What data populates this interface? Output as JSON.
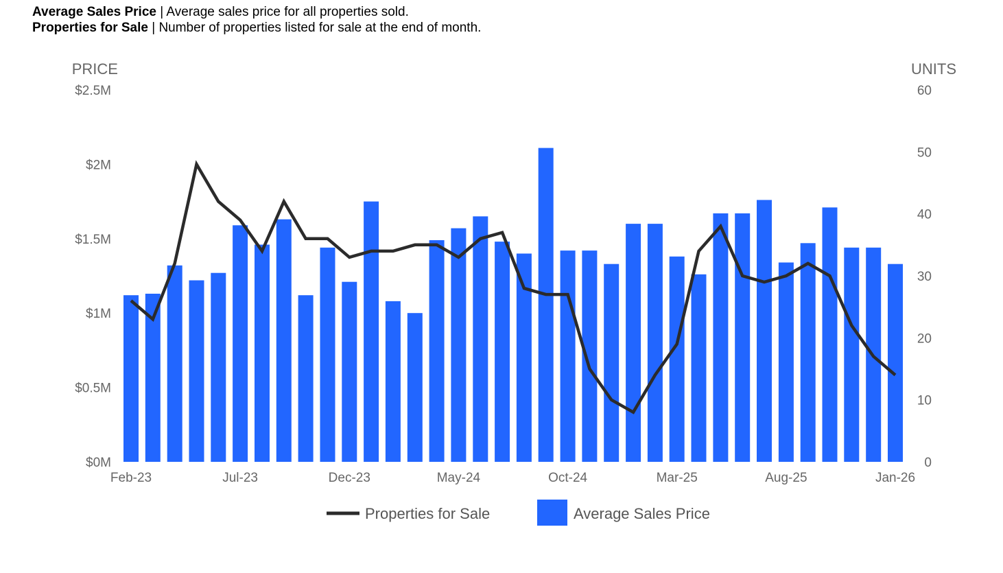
{
  "header": {
    "line1": {
      "bold": "Average Sales Price",
      "rest": " | Average sales price for all properties sold."
    },
    "line2": {
      "bold": "Properties for Sale",
      "rest": " | Number of properties listed for sale at the end of month."
    }
  },
  "chart_data": {
    "type": "bar",
    "categories": [
      "Feb-23",
      "Mar-23",
      "Apr-23",
      "May-23",
      "Jun-23",
      "Jul-23",
      "Aug-23",
      "Sep-23",
      "Oct-23",
      "Nov-23",
      "Dec-23",
      "Jan-24",
      "Feb-24",
      "Mar-24",
      "Apr-24",
      "May-24",
      "Jun-24",
      "Jul-24",
      "Aug-24",
      "Sep-24",
      "Oct-24",
      "Nov-24",
      "Dec-24",
      "Jan-25",
      "Feb-25",
      "Mar-25",
      "Apr-25",
      "May-25",
      "Jun-25",
      "Jul-25",
      "Aug-25",
      "Sep-25",
      "Oct-25",
      "Nov-25",
      "Dec-25",
      "Jan-26"
    ],
    "x_tick_labels": [
      "Feb-23",
      "Jul-23",
      "Dec-23",
      "May-24",
      "Oct-24",
      "Mar-25",
      "Aug-25",
      "Jan-26"
    ],
    "left_axis": {
      "label": "PRICE",
      "ylim": [
        0,
        2500000
      ],
      "ticks": [
        "$0M",
        "$0.5M",
        "$1M",
        "$1.5M",
        "$2M",
        "$2.5M"
      ],
      "tick_values": [
        0,
        500000,
        1000000,
        1500000,
        2000000,
        2500000
      ]
    },
    "right_axis": {
      "label": "UNITS",
      "ylim": [
        0,
        60
      ],
      "ticks": [
        "0",
        "10",
        "20",
        "30",
        "40",
        "50",
        "60"
      ],
      "tick_values": [
        0,
        10,
        20,
        30,
        40,
        50,
        60
      ]
    },
    "series": [
      {
        "name": "Average Sales Price",
        "kind": "bar",
        "axis": "left",
        "color": "#2266ff",
        "values": [
          1120000,
          1130000,
          1320000,
          1220000,
          1270000,
          1590000,
          1460000,
          1630000,
          1120000,
          1440000,
          1210000,
          1750000,
          1080000,
          1000000,
          1490000,
          1570000,
          1650000,
          1480000,
          1400000,
          2110000,
          1420000,
          1420000,
          1330000,
          1600000,
          1600000,
          1380000,
          1260000,
          1670000,
          1670000,
          1760000,
          1340000,
          1470000,
          1710000,
          1440000,
          1440000,
          1330000
        ]
      },
      {
        "name": "Properties for Sale",
        "kind": "line",
        "axis": "right",
        "color": "#2b2b2b",
        "values": [
          26,
          23,
          32,
          48,
          42,
          39,
          34,
          42,
          36,
          36,
          33,
          34,
          34,
          35,
          35,
          33,
          36,
          37,
          28,
          27,
          27,
          15,
          10,
          8,
          14,
          19,
          34,
          38,
          30,
          29,
          30,
          32,
          30,
          22,
          17,
          14
        ]
      }
    ],
    "legend": {
      "placement": "bottom-center",
      "entries": [
        "Properties for Sale",
        "Average Sales Price"
      ]
    },
    "grid": false
  }
}
